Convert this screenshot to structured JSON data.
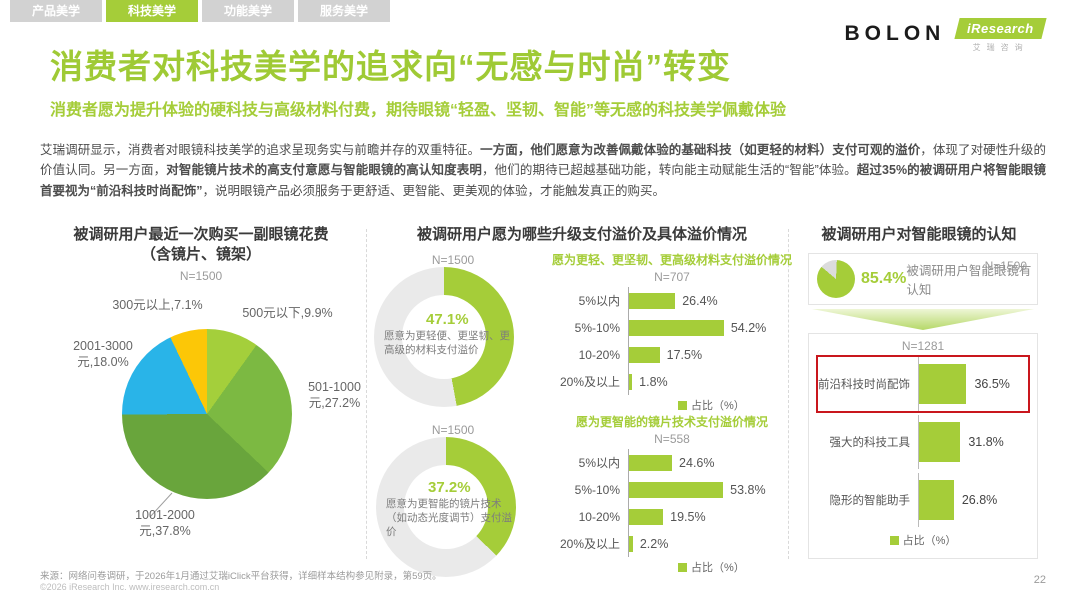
{
  "tabs": [
    {
      "label": "产品美学",
      "active": false
    },
    {
      "label": "科技美学",
      "active": true
    },
    {
      "label": "功能美学",
      "active": false
    },
    {
      "label": "服务美学",
      "active": false
    }
  ],
  "logos": {
    "bolon": "BOLON",
    "iresearch": "iResearch",
    "iresearch_sub": "艾瑞咨询"
  },
  "header": {
    "title": "消费者对科技美学的追求向“无感与时尚”转变",
    "subtitle": "消费者愿为提升体验的硬科技与高级材料付费，期待眼镜“轻盈、坚韧、智能”等无感的科技美学佩戴体验"
  },
  "paragraph": [
    {
      "text": "艾瑞调研显示，消费者对眼镜科技美学的追求呈现务实与前瞻并存的双重特征。",
      "bold": false
    },
    {
      "text": "一方面，他们愿意为改善佩戴体验的基础科技（如更轻的材料）支付可观的溢价",
      "bold": true
    },
    {
      "text": "，体现了对硬性升级的价值认同。另一方面，",
      "bold": false
    },
    {
      "text": "对智能镜片技术的高支付意愿与智能眼镜的高认知度表明",
      "bold": true
    },
    {
      "text": "，他们的期待已超越基础功能，转向能主动赋能生活的“智能”体验。",
      "bold": false
    },
    {
      "text": "超过35%的被调研用户将智能眼镜首要视为“前沿科技时尚配饰”",
      "bold": true
    },
    {
      "text": "，说明眼镜产品必须服务于更舒适、更智能、更美观的体验，才能触发真正的购买。",
      "bold": false
    }
  ],
  "sections": {
    "middle_title": "被调研用户愿为哪些升级支付溢价及具体溢价情况",
    "right_title": "被调研用户对智能眼镜的认知"
  },
  "chart_data": [
    {
      "id": "spend_pie",
      "type": "pie",
      "title": "被调研用户最近一次购买一副眼镜花费",
      "title_line2": "（含镜片、镜架）",
      "sample": "N=1500",
      "categories": [
        "500元以下",
        "501-1000元",
        "1001-2000元",
        "2001-3000元",
        "300元以上"
      ],
      "values": [
        9.9,
        27.2,
        37.8,
        18.0,
        7.1
      ],
      "colors": [
        "#a4cf3b",
        "#7cb942",
        "#69a53c",
        "#29b4e8",
        "#fcc707"
      ],
      "labels": [
        "500元以下,9.9%",
        "501-1000\n元,27.2%",
        "1001-2000\n元,37.8%",
        "2001-3000\n元,18.0%",
        "300元以上,7.1%"
      ]
    },
    {
      "id": "donut_material",
      "type": "pie",
      "subtype": "donut",
      "sample": "N=1500",
      "value": 47.1,
      "value_label": "47.1%",
      "label": "愿意为更轻便、更坚韧、更高级的材料支付溢价",
      "color": "#a5cd39",
      "rest_color": "#eaeaea"
    },
    {
      "id": "bars_material",
      "type": "bar",
      "title": "愿为更轻、更坚韧、更高级材料支付溢价情况",
      "sample": "N=707",
      "categories": [
        "5%以内",
        "5%-10%",
        "10-20%",
        "20%及以上"
      ],
      "values": [
        26.4,
        54.2,
        17.5,
        1.8
      ],
      "value_labels": [
        "26.4%",
        "54.2%",
        "17.5%",
        "1.8%"
      ],
      "legend": "占比（%）",
      "bar_color": "#a5cd39",
      "xlim": [
        0,
        60
      ]
    },
    {
      "id": "donut_lens",
      "type": "pie",
      "subtype": "donut",
      "sample": "N=1500",
      "value": 37.2,
      "value_label": "37.2%",
      "label": "愿意为更智能的镜片技术（如动态光度调节）支付溢价",
      "color": "#a5cd39",
      "rest_color": "#eaeaea"
    },
    {
      "id": "bars_lens",
      "type": "bar",
      "title": "愿为更智能的镜片技术支付溢价情况",
      "sample": "N=558",
      "categories": [
        "5%以内",
        "5%-10%",
        "10-20%",
        "20%及以上"
      ],
      "values": [
        24.6,
        53.8,
        19.5,
        2.2
      ],
      "value_labels": [
        "24.6%",
        "53.8%",
        "19.5%",
        "2.2%"
      ],
      "legend": "占比（%）",
      "bar_color": "#a5cd39",
      "xlim": [
        0,
        60
      ]
    },
    {
      "id": "awareness_pie",
      "type": "pie",
      "sample": "N=1500",
      "value": 85.4,
      "value_label": "85.4%",
      "label": "被调研用户智能眼镜有认知",
      "color": "#a5cd39",
      "rest_color": "#dcdcdc"
    },
    {
      "id": "perception_bars",
      "type": "bar",
      "sample": "N=1281",
      "categories": [
        "前沿科技时尚配饰",
        "强大的科技工具",
        "隐形的智能助手"
      ],
      "values": [
        36.5,
        31.8,
        26.8
      ],
      "value_labels": [
        "36.5%",
        "31.8%",
        "26.8%"
      ],
      "legend": "占比（%）",
      "bar_color": "#a5cd39",
      "highlight_index": 0,
      "highlight_color": "#c9161d",
      "xlim": [
        0,
        40
      ]
    }
  ],
  "footer": {
    "source": "来源：网络问卷调研，于2026年1月通过艾瑞iClick平台获得，详细样本结构参见附录，第59页。",
    "copyright": "©2026 iResearch Inc.    www.iresearch.com.cn",
    "page": "22"
  },
  "colors": {
    "accent": "#a5cd39",
    "tab_inactive": "#d2d2d2",
    "highlight_red": "#c9161d",
    "donut_rest": "#eaeaea",
    "mini_pie_rest": "#dcdcdc"
  }
}
